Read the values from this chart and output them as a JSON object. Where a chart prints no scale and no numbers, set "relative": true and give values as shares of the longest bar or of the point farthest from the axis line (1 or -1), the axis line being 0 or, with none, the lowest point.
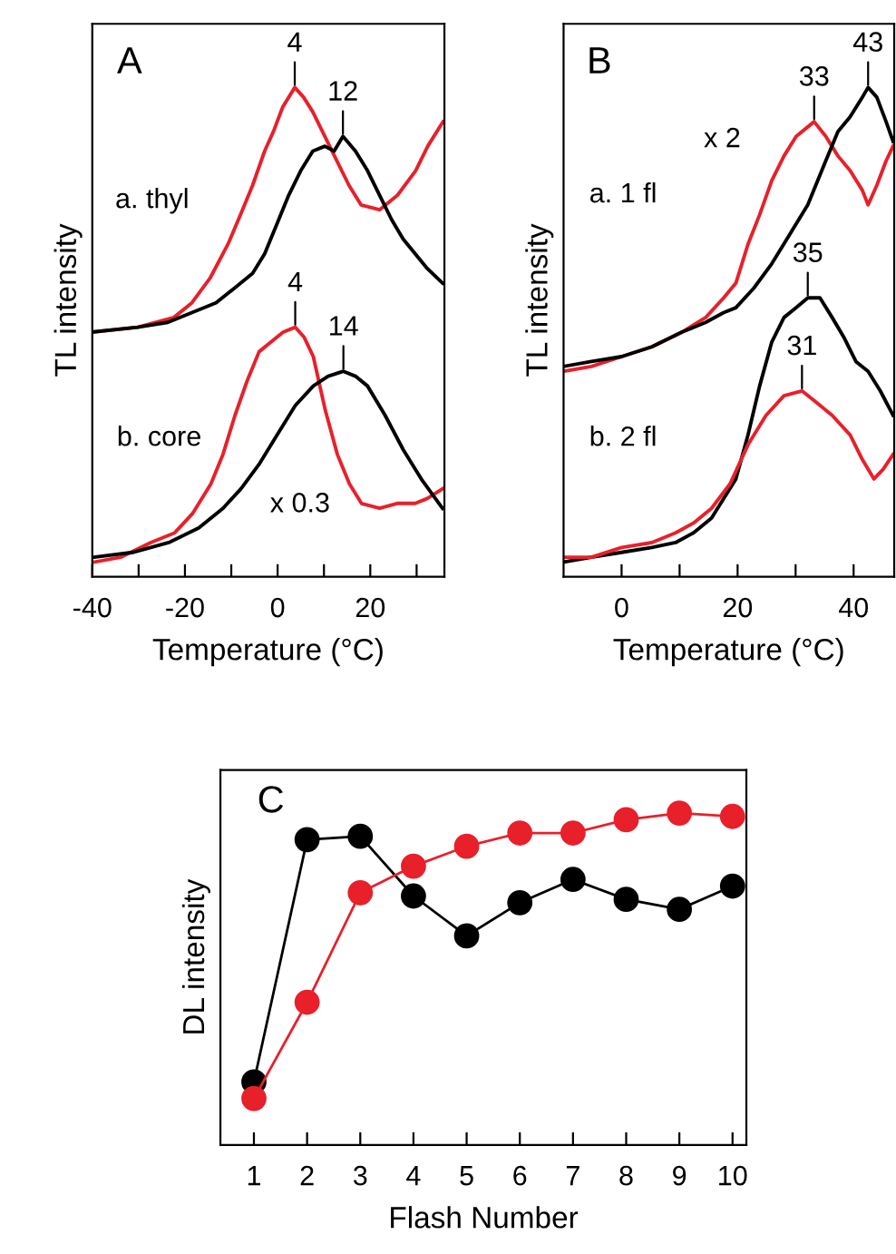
{
  "chart_data": [
    {
      "type": "line",
      "title": "A",
      "xlabel": "Temperature (°C)",
      "ylabel": "TL intensity",
      "relative": true,
      "tick_labels": "x",
      "marker": "none",
      "xlim": [
        -40,
        36
      ],
      "xticks": [
        -40,
        {
          "value": -30,
          "label": null
        },
        -20,
        {
          "value": -10,
          "label": null
        },
        0,
        {
          "value": 10,
          "label": null
        },
        20,
        {
          "value": 30,
          "label": null
        }
      ],
      "series": [
        {
          "color": "#e8202a",
          "x": [
            -40,
            -30.2,
            -22.4,
            -18.5,
            -14.6,
            -10.7,
            -8.0,
            -5.4,
            -2.8,
            -0.9,
            1.1,
            3.7,
            5.6,
            7.6,
            10.2,
            12.8,
            15.4,
            18.0,
            22.0,
            25.9,
            29.8,
            32.4,
            35.7
          ],
          "values": [
            0.5,
            0.51,
            0.53,
            0.56,
            0.61,
            0.68,
            0.74,
            0.8,
            0.87,
            0.91,
            0.96,
            1.0,
            0.98,
            0.95,
            0.9,
            0.85,
            0.8,
            0.76,
            0.75,
            0.78,
            0.83,
            0.88,
            0.93
          ]
        },
        {
          "color": "#000000",
          "x": [
            -40,
            -30.2,
            -23.7,
            -18.5,
            -13.3,
            -9.3,
            -5.4,
            -2.8,
            -0.2,
            2.4,
            5.0,
            7.6,
            10.2,
            12.2,
            14.1,
            16.8,
            19.4,
            22.0,
            24.6,
            27.1,
            29.7,
            32.3,
            35.6
          ],
          "values": [
            0.5,
            0.51,
            0.52,
            0.54,
            0.56,
            0.59,
            0.62,
            0.66,
            0.72,
            0.78,
            0.83,
            0.87,
            0.88,
            0.87,
            0.9,
            0.87,
            0.83,
            0.78,
            0.73,
            0.69,
            0.66,
            0.63,
            0.6
          ]
        },
        {
          "color": "#e8202a",
          "x": [
            -39.7,
            -33.9,
            -27.4,
            -22.2,
            -18.3,
            -14.4,
            -11.8,
            -9.2,
            -6.6,
            -4.0,
            -1.4,
            1.2,
            3.8,
            5.7,
            7.7,
            10.3,
            12.9,
            15.5,
            18.1,
            22.0,
            25.8,
            29.7,
            32.3,
            35.6
          ],
          "values": [
            0.03,
            0.04,
            0.07,
            0.09,
            0.13,
            0.19,
            0.25,
            0.33,
            0.4,
            0.46,
            0.48,
            0.5,
            0.51,
            0.49,
            0.45,
            0.34,
            0.25,
            0.19,
            0.15,
            0.14,
            0.15,
            0.15,
            0.16,
            0.18
          ]
        },
        {
          "color": "#000000",
          "x": [
            -39.7,
            -31.3,
            -23.5,
            -17.0,
            -11.8,
            -7.9,
            -4.0,
            -0.1,
            3.8,
            7.7,
            10.9,
            14.2,
            16.8,
            19.4,
            23.2,
            27.1,
            31.0,
            35.6
          ],
          "values": [
            0.04,
            0.05,
            0.07,
            0.1,
            0.14,
            0.18,
            0.23,
            0.29,
            0.35,
            0.39,
            0.41,
            0.42,
            0.41,
            0.39,
            0.33,
            0.26,
            0.2,
            0.14
          ]
        }
      ],
      "annotations": [
        "a. thyl",
        "b. core",
        "x 0.3",
        "4",
        "12",
        "4",
        "14"
      ]
    },
    {
      "type": "line",
      "title": "B",
      "xlabel": "Temperature (°C)",
      "ylabel": "TL intensity",
      "relative": true,
      "tick_labels": "x",
      "marker": "none",
      "xlim": [
        -10,
        47
      ],
      "xticks": [
        0,
        {
          "value": 10,
          "label": null
        },
        20,
        {
          "value": 30,
          "label": null
        },
        40
      ],
      "series": [
        {
          "color": "#e8202a",
          "x": [
            -10,
            -5.2,
            0,
            5.2,
            10.4,
            14.5,
            17.6,
            19.7,
            21.8,
            23.8,
            25.9,
            28.0,
            30.1,
            33.2,
            35.2,
            37.3,
            39.4,
            41.5,
            42.5,
            44.0,
            45.6,
            46.8
          ],
          "values": [
            0.42,
            0.43,
            0.45,
            0.47,
            0.5,
            0.53,
            0.57,
            0.6,
            0.68,
            0.74,
            0.81,
            0.86,
            0.9,
            0.93,
            0.9,
            0.86,
            0.83,
            0.79,
            0.76,
            0.8,
            0.85,
            0.88
          ]
        },
        {
          "color": "#000000",
          "x": [
            -10,
            -5.2,
            0,
            5.2,
            10.4,
            14.5,
            17.6,
            19.7,
            22.8,
            25.9,
            29.0,
            32.1,
            35.2,
            37.3,
            39.4,
            41.5,
            42.5,
            44.0,
            45.6,
            46.8
          ],
          "values": [
            0.43,
            0.44,
            0.45,
            0.47,
            0.5,
            0.52,
            0.54,
            0.55,
            0.59,
            0.64,
            0.7,
            0.76,
            0.85,
            0.91,
            0.94,
            0.98,
            1.0,
            0.98,
            0.93,
            0.89
          ]
        },
        {
          "color": "#000000",
          "x": [
            -10,
            -5.2,
            0,
            5.2,
            9.3,
            12.4,
            15.5,
            17.6,
            19.7,
            21.8,
            23.8,
            25.9,
            28.0,
            30.1,
            32.1,
            34.2,
            36.3,
            38.3,
            40.4,
            42.5,
            44.6,
            46.8
          ],
          "values": [
            0.03,
            0.04,
            0.05,
            0.06,
            0.07,
            0.09,
            0.12,
            0.16,
            0.2,
            0.29,
            0.39,
            0.48,
            0.53,
            0.55,
            0.57,
            0.57,
            0.53,
            0.49,
            0.44,
            0.42,
            0.38,
            0.33
          ]
        },
        {
          "color": "#e8202a",
          "x": [
            -10,
            -5.2,
            0,
            5.2,
            9.3,
            12.4,
            15.5,
            18.7,
            21.8,
            24.9,
            28.0,
            31.1,
            33.2,
            36.3,
            39.4,
            41.5,
            43.5,
            45.1,
            46.8
          ],
          "values": [
            0.04,
            0.04,
            0.06,
            0.07,
            0.09,
            0.11,
            0.14,
            0.19,
            0.27,
            0.33,
            0.37,
            0.38,
            0.36,
            0.33,
            0.29,
            0.24,
            0.2,
            0.22,
            0.25
          ]
        }
      ],
      "annotations": [
        "a. 1 fl",
        "b. 2 fl",
        "x 2",
        "33",
        "43",
        "35",
        "31"
      ]
    },
    {
      "type": "line",
      "title": "C",
      "xlabel": "Flash Number",
      "ylabel": "DL intensity",
      "relative": true,
      "tick_labels": "x",
      "marker": "circle",
      "categories": [
        "1",
        "2",
        "3",
        "4",
        "5",
        "6",
        "7",
        "8",
        "9",
        "10"
      ],
      "series": [
        {
          "color": "#000000",
          "values": [
            0.19,
            0.92,
            0.93,
            0.75,
            0.63,
            0.73,
            0.8,
            0.74,
            0.71,
            0.78
          ]
        },
        {
          "color": "#e8202a",
          "values": [
            0.14,
            0.43,
            0.76,
            0.84,
            0.9,
            0.94,
            0.94,
            0.98,
            1.0,
            0.99
          ]
        }
      ]
    }
  ]
}
